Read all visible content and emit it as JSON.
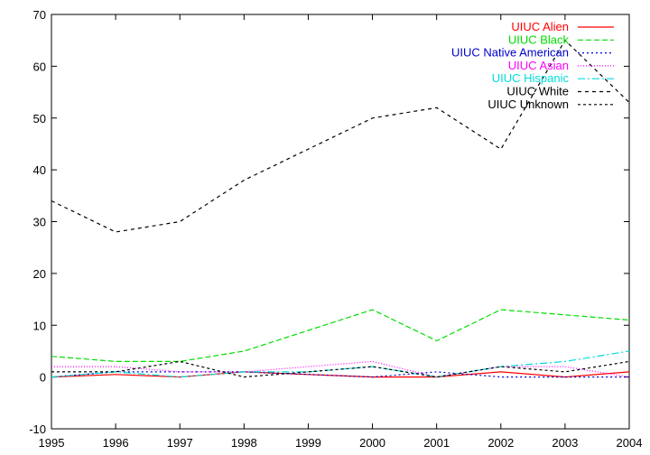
{
  "chart_data": {
    "type": "line",
    "title": "",
    "xlabel": "",
    "ylabel": "",
    "x": [
      1995,
      1996,
      1997,
      1998,
      1999,
      2000,
      2001,
      2002,
      2003,
      2004
    ],
    "xlim": [
      1995,
      2004
    ],
    "ylim": [
      -10,
      70
    ],
    "xticks": [
      "1995",
      "1996",
      "1997",
      "1998",
      "1999",
      "2000",
      "2001",
      "2002",
      "2003",
      "2004"
    ],
    "yticks": [
      "-10",
      "0",
      "10",
      "20",
      "30",
      "40",
      "50",
      "60",
      "70"
    ],
    "grid": false,
    "legend_position": "top-right",
    "series": [
      {
        "name": "UIUC Alien",
        "color": "#ff0000",
        "dash": "solid",
        "values": [
          0,
          0.5,
          0,
          1,
          0.5,
          0,
          0,
          1,
          0,
          1
        ]
      },
      {
        "name": "UIUC Black",
        "color": "#00dd00",
        "dash": "long-dash",
        "values": [
          4,
          3,
          3,
          5,
          9,
          13,
          7,
          13,
          12,
          11
        ]
      },
      {
        "name": "UIUC Native American",
        "color": "#0000cc",
        "dash": "dot",
        "values": [
          0,
          1,
          1,
          1,
          0.5,
          0,
          1,
          0,
          0,
          0
        ]
      },
      {
        "name": "UIUC Asian",
        "color": "#ff00ff",
        "dash": "dense-dot",
        "values": [
          2,
          2,
          1,
          1,
          2,
          3,
          0,
          2,
          2,
          0
        ]
      },
      {
        "name": "UIUC Hispanic",
        "color": "#00dddd",
        "dash": "dash-dot",
        "values": [
          0,
          1,
          0,
          1,
          1,
          2,
          0,
          2,
          3,
          5
        ]
      },
      {
        "name": "UIUC White",
        "color": "#000000",
        "dash": "short-dash",
        "values": [
          34,
          28,
          30,
          38,
          44,
          50,
          52,
          44,
          65,
          53
        ]
      },
      {
        "name": "UIUC Unknown",
        "color": "#000000",
        "dash": "dotted",
        "values": [
          1,
          1,
          3,
          0,
          1,
          2,
          0,
          2,
          1,
          3
        ]
      }
    ]
  }
}
